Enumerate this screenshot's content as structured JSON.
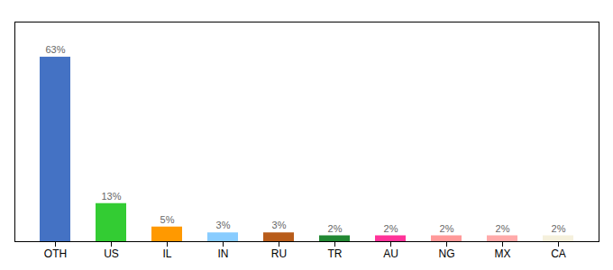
{
  "chart_data": {
    "type": "bar",
    "categories": [
      "OTH",
      "US",
      "IL",
      "IN",
      "RU",
      "TR",
      "AU",
      "NG",
      "MX",
      "CA"
    ],
    "values": [
      63,
      13,
      5,
      3,
      3,
      2,
      2,
      2,
      2,
      2
    ],
    "value_labels": [
      "63%",
      "13%",
      "5%",
      "3%",
      "3%",
      "2%",
      "2%",
      "2%",
      "2%",
      "2%"
    ],
    "colors": [
      "#4472c4",
      "#33cc33",
      "#ff9900",
      "#88ccff",
      "#b85c1a",
      "#228833",
      "#ff3399",
      "#ff9999",
      "#ffaaaa",
      "#f5f0dc"
    ],
    "ylim": [
      0,
      75
    ],
    "data_labels": true,
    "tick_labels": "x"
  }
}
